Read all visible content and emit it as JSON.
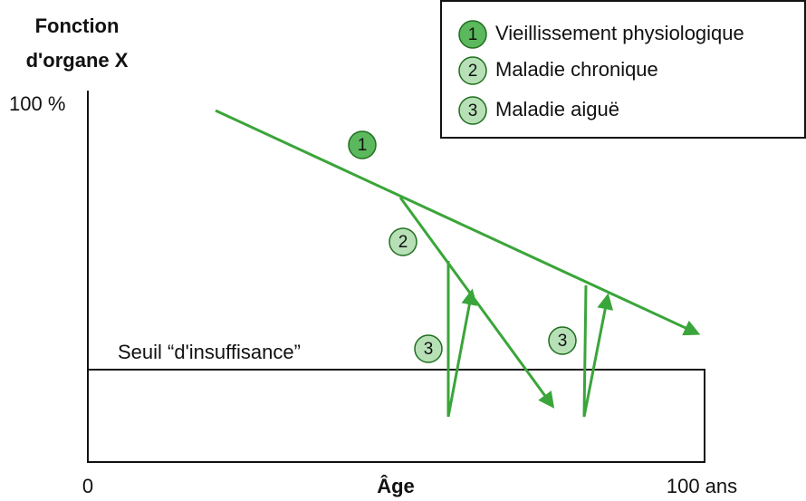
{
  "axes": {
    "y_label_lines": [
      "Fonction",
      "d'organe X"
    ],
    "y_max_label": "100 %",
    "x_min_label": "0",
    "x_label": "Âge",
    "x_max_label": "100 ans"
  },
  "threshold_label": "Seuil “d'insuffisance”",
  "legend": [
    {
      "number": "1",
      "label": "Vieillissement physiologique"
    },
    {
      "number": "2",
      "label": "Maladie chronique"
    },
    {
      "number": "3",
      "label": "Maladie aiguë"
    }
  ],
  "curve_markers": [
    "1",
    "2",
    "3",
    "3"
  ]
}
